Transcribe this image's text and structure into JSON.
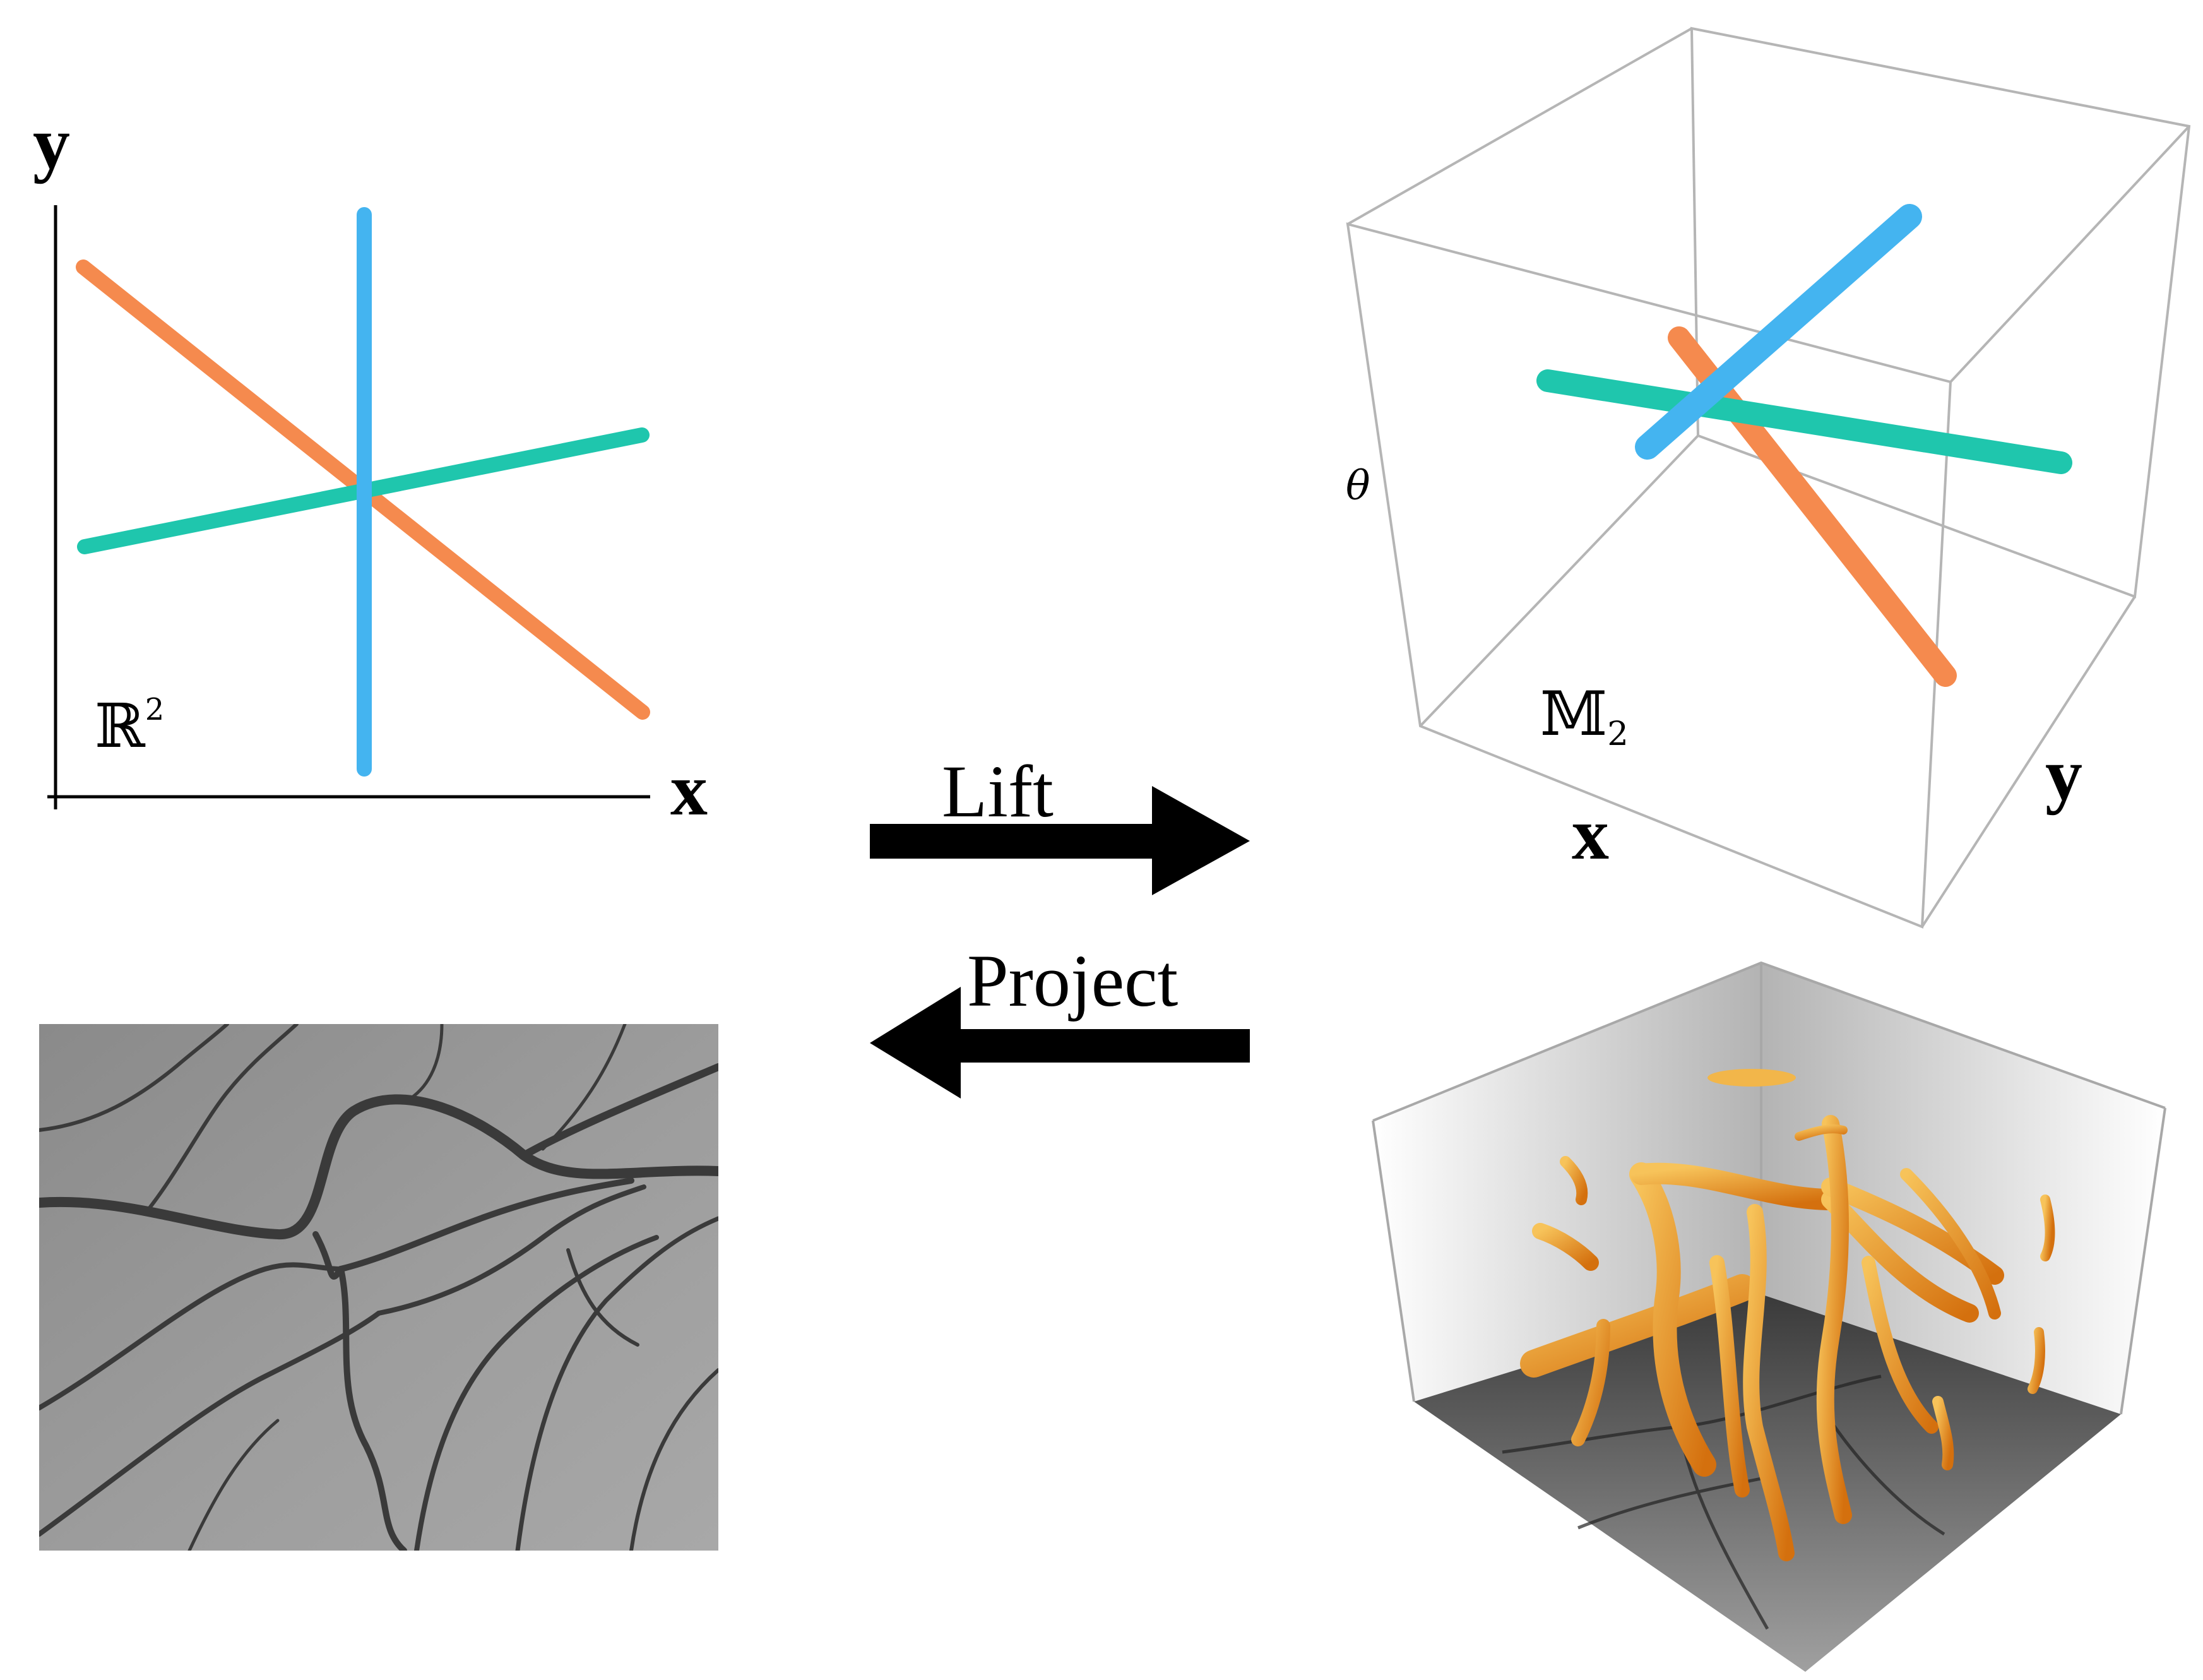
{
  "planar_plot": {
    "x_label": "x",
    "y_label": "y",
    "space_label": "ℝ",
    "space_exponent": "2"
  },
  "lifted_plot": {
    "theta_label": "θ",
    "x_label": "x",
    "y_label": "y",
    "space_label": "𝕄",
    "space_subscript": "2"
  },
  "arrows": {
    "lift_label": "Lift",
    "project_label": "Project"
  },
  "colors": {
    "orange": "#f58a4e",
    "blue": "#44b4f0",
    "teal": "#1fc6ad",
    "arrow": "#000000",
    "box_edge": "#b5b5b5",
    "retina_bg": "#8f8f8f",
    "vessel": "#3a3a3a",
    "tube": "#e8901f"
  }
}
